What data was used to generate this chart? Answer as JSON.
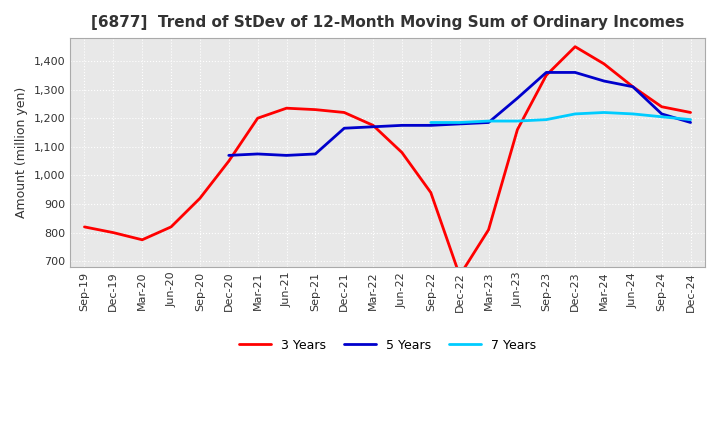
{
  "title": "[6877]  Trend of StDev of 12-Month Moving Sum of Ordinary Incomes",
  "ylabel": "Amount (million yen)",
  "ylim": [
    680,
    1480
  ],
  "yticks": [
    700,
    800,
    900,
    1000,
    1100,
    1200,
    1300,
    1400
  ],
  "x_labels": [
    "Sep-19",
    "Dec-19",
    "Mar-20",
    "Jun-20",
    "Sep-20",
    "Dec-20",
    "Mar-21",
    "Jun-21",
    "Sep-21",
    "Dec-21",
    "Mar-22",
    "Jun-22",
    "Sep-22",
    "Dec-22",
    "Mar-23",
    "Jun-23",
    "Sep-23",
    "Dec-23",
    "Mar-24",
    "Jun-24",
    "Sep-24",
    "Dec-24"
  ],
  "series": {
    "3 Years": {
      "color": "#ff0000",
      "linewidth": 2.0,
      "values": [
        820,
        800,
        775,
        820,
        920,
        1050,
        1200,
        1235,
        1230,
        1220,
        1175,
        1080,
        940,
        650,
        810,
        1160,
        1350,
        1450,
        1390,
        1310,
        1240,
        1220
      ]
    },
    "5 Years": {
      "color": "#0000cc",
      "linewidth": 2.0,
      "values": [
        null,
        null,
        null,
        null,
        null,
        1070,
        1075,
        1070,
        1075,
        1165,
        1170,
        1175,
        1175,
        1180,
        1185,
        1270,
        1360,
        1360,
        1330,
        1310,
        1215,
        1185
      ]
    },
    "7 Years": {
      "color": "#00ccff",
      "linewidth": 2.0,
      "values": [
        null,
        null,
        null,
        null,
        null,
        null,
        null,
        null,
        null,
        null,
        null,
        null,
        1185,
        1185,
        1190,
        1190,
        1195,
        1215,
        1220,
        1215,
        1205,
        1195
      ]
    },
    "10 Years": {
      "color": "#008000",
      "linewidth": 2.0,
      "values": [
        null,
        null,
        null,
        null,
        null,
        null,
        null,
        null,
        null,
        null,
        null,
        null,
        null,
        null,
        null,
        null,
        null,
        null,
        null,
        null,
        null,
        null
      ]
    }
  },
  "background_color": "#ffffff",
  "plot_bg_color": "#e8e8e8",
  "grid_color": "#ffffff",
  "grid_style": "dotted",
  "title_fontsize": 11,
  "label_fontsize": 9,
  "tick_fontsize": 8
}
